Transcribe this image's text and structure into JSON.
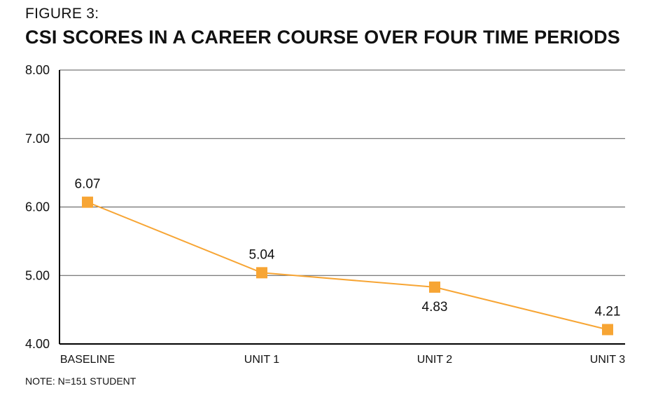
{
  "figure_label": "FIGURE 3:",
  "note": "NOTE: N=151 STUDENT",
  "colors": {
    "series": "#F7A534",
    "marker": "#F7A534",
    "grid": "#555555",
    "axis": "#000000"
  },
  "chart_data": {
    "type": "line",
    "title": "CSI SCORES IN A CAREER COURSE OVER FOUR TIME PERIODS",
    "xlabel": "",
    "ylabel": "",
    "categories": [
      "BASELINE",
      "UNIT 1",
      "UNIT 2",
      "UNIT 3"
    ],
    "series": [
      {
        "values": [
          6.07,
          5.04,
          4.83,
          4.21
        ]
      }
    ],
    "data_labels": [
      "6.07",
      "5.04",
      "4.83",
      "4.21"
    ],
    "label_positions": [
      "above",
      "above",
      "below",
      "above"
    ],
    "yticks": [
      "4.00",
      "5.00",
      "6.00",
      "7.00",
      "8.00"
    ],
    "ylim": [
      4,
      8
    ],
    "grid": true,
    "legend": "none"
  }
}
